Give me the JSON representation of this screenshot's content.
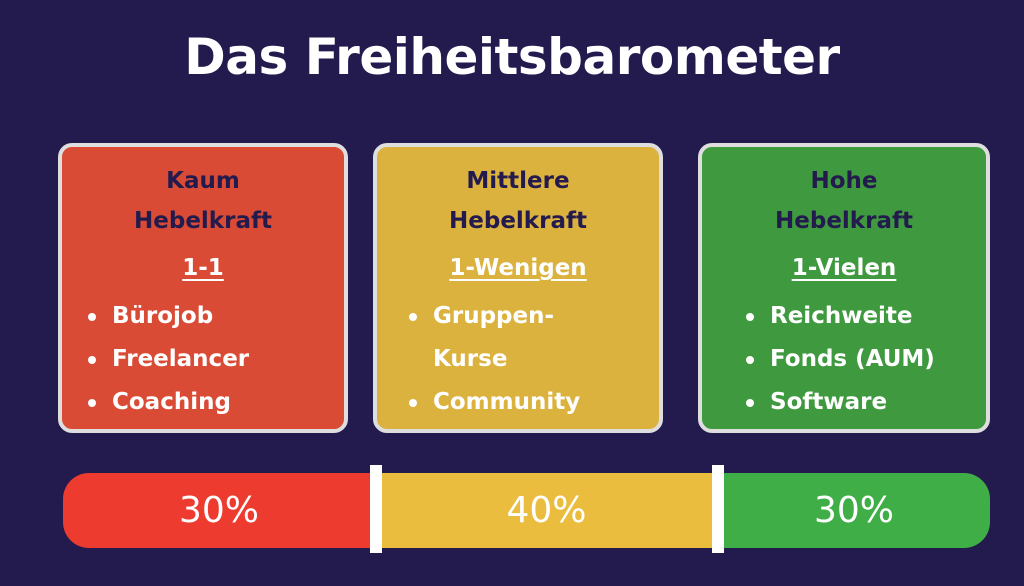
{
  "title": "Das Freiheitsbarometer",
  "cards": [
    {
      "heading": [
        "Kaum",
        "Hebelkraft"
      ],
      "subtitle": "1-1",
      "bullets": [
        [
          "Bürojob"
        ],
        [
          "Freelancer"
        ],
        [
          "Coaching"
        ]
      ]
    },
    {
      "heading": [
        "Mittlere",
        "Hebelkraft"
      ],
      "subtitle": "1-Wenigen",
      "bullets": [
        [
          "Gruppen-",
          "Kurse"
        ],
        [
          "Community"
        ]
      ]
    },
    {
      "heading": [
        "Hohe",
        "Hebelkraft"
      ],
      "subtitle": "1-Vielen",
      "bullets": [
        [
          "Reichweite"
        ],
        [
          "Fonds (AUM)"
        ],
        [
          "Software"
        ]
      ]
    }
  ],
  "bar": [
    "30%",
    "40%",
    "30%"
  ]
}
